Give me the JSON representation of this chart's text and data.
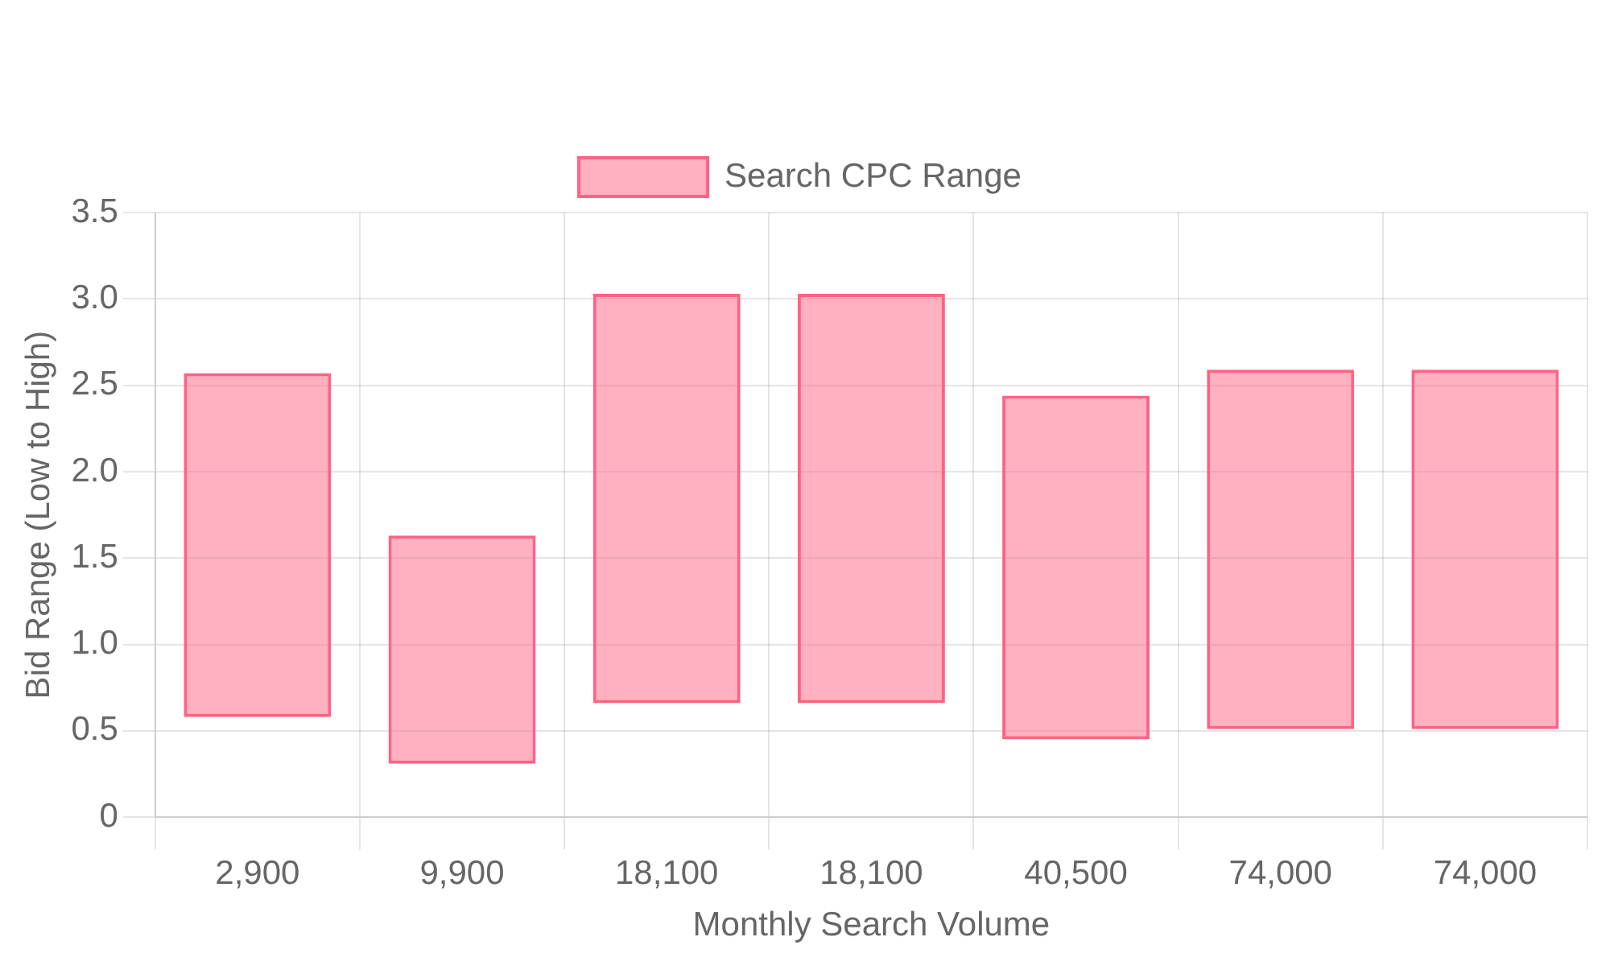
{
  "chart_data": {
    "type": "bar",
    "xlabel": "Monthly Search Volume",
    "ylabel": "Bid Range (Low to High)",
    "categories": [
      "2,900",
      "9,900",
      "18,100",
      "18,100",
      "40,500",
      "74,000",
      "74,000"
    ],
    "series": [
      {
        "name": "Search CPC Range",
        "color": "#ff6384",
        "base": [
          0.58,
          0.31,
          0.66,
          0.66,
          0.45,
          0.51,
          0.51
        ],
        "values": [
          1.99,
          1.32,
          2.37,
          2.37,
          1.99,
          2.08,
          2.08
        ]
      }
    ],
    "ylim": [
      0,
      3.5
    ],
    "yticks": [
      0,
      0.5,
      {
        "value": 1,
        "label": "1.0"
      },
      1.5,
      {
        "value": 2,
        "label": "2.0"
      },
      2.5,
      {
        "value": 3,
        "label": "3.0"
      },
      3.5
    ],
    "grid": true,
    "legend": "top"
  }
}
